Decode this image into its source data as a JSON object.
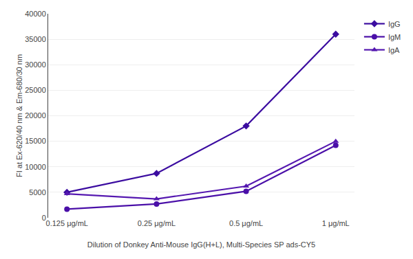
{
  "chart_data": {
    "type": "line",
    "categories": [
      "0.125 μg/mL",
      "0.25 μg/mL",
      "0.5 μg/mL",
      "1 μg/mL"
    ],
    "series": [
      {
        "name": "IgG",
        "color": "#3b0ca0",
        "marker": "diamond",
        "values": [
          5000,
          8700,
          18000,
          36000
        ]
      },
      {
        "name": "IgM",
        "color": "#4a0fa8",
        "marker": "circle",
        "values": [
          1700,
          2700,
          5200,
          14200
        ]
      },
      {
        "name": "IgA",
        "color": "#5518b0",
        "marker": "triangle-up",
        "values": [
          4700,
          3700,
          6200,
          15000
        ]
      }
    ],
    "xlabel": "Dilution of Donkey Anti-Mouse IgG(H+L), Multi-Species SP ads-CY5",
    "ylabel": "FI at Ex-620/40 nm & Em-680/30 nm",
    "ylim": [
      0,
      40000
    ],
    "yticks": [
      0,
      5000,
      10000,
      15000,
      20000,
      25000,
      30000,
      35000,
      40000
    ],
    "grid": true
  }
}
